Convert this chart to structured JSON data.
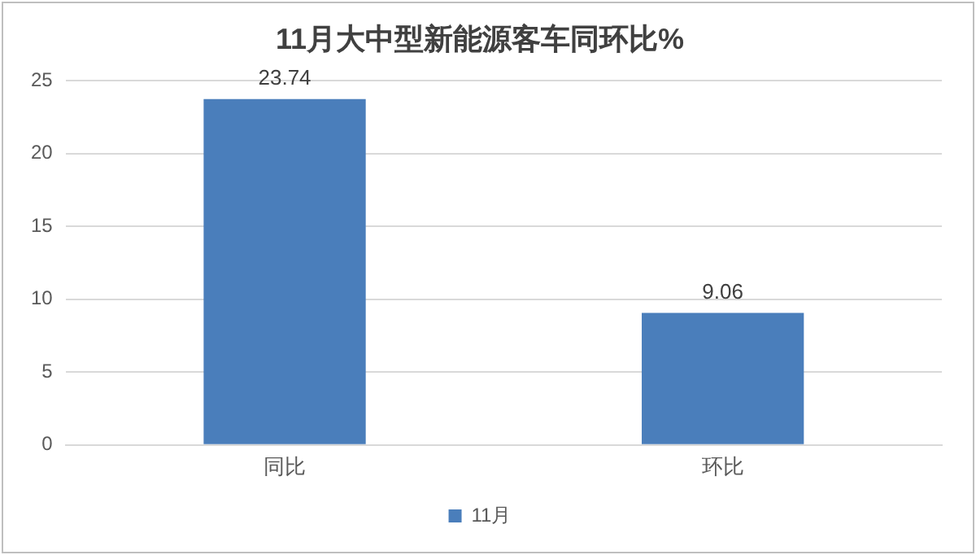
{
  "chart_data": {
    "type": "bar",
    "title": "11月大中型新能源客车同环比%",
    "categories": [
      "同比",
      "环比"
    ],
    "series": [
      {
        "name": "11月",
        "color": "#4a7ebb",
        "values": [
          23.74,
          9.06
        ]
      }
    ],
    "ylim": [
      0,
      25
    ],
    "yticks": [
      0,
      5,
      10,
      15,
      20,
      25
    ],
    "grid": "y",
    "legend": "bottom",
    "data_labels": true
  }
}
